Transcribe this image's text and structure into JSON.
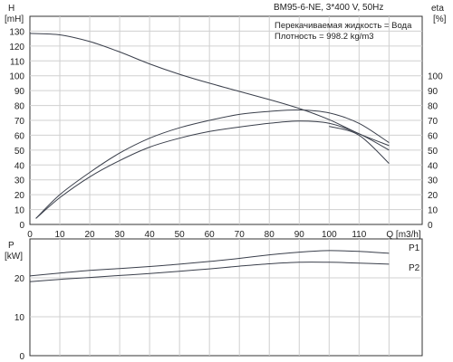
{
  "chart_data": [
    {
      "type": "line",
      "title": "BM95-6-NE, 3*400 V, 50Hz",
      "annotations": [
        "Перекачиваемая жидкость = Вода",
        "Плотность = 998.2 kg/m3"
      ],
      "xlabel": "Q [m3/h]",
      "xlim": [
        0,
        130
      ],
      "x_ticks": [
        "0",
        "10",
        "20",
        "30",
        "40",
        "50",
        "60",
        "70",
        "80",
        "90",
        "100",
        "110",
        "Q [m3/h]"
      ],
      "ylabel_left": [
        "H",
        "[mH]"
      ],
      "ylim_left": [
        0,
        140
      ],
      "y_ticks_left": [
        "0",
        "10",
        "20",
        "30",
        "40",
        "50",
        "60",
        "70",
        "80",
        "90",
        "100",
        "110",
        "120",
        "130"
      ],
      "ylabel_right": [
        "eta",
        "[%]"
      ],
      "ylim_right": [
        0,
        140
      ],
      "y_ticks_right": [
        "0",
        "10",
        "20",
        "30",
        "40",
        "50",
        "60",
        "70",
        "80",
        "90",
        "100"
      ],
      "grid": true,
      "series": [
        {
          "axis": "left",
          "x": [
            0,
            10,
            20,
            30,
            40,
            50,
            60,
            70,
            80,
            90,
            100,
            110,
            120
          ],
          "y": [
            128.5,
            127.5,
            123,
            116,
            108,
            101,
            95,
            89.5,
            84,
            78,
            70.5,
            61,
            53
          ]
        },
        {
          "axis": "right",
          "x": [
            2,
            10,
            20,
            30,
            40,
            50,
            60,
            70,
            80,
            90,
            100,
            110,
            120
          ],
          "y": [
            4,
            20,
            35,
            48,
            58,
            65,
            70,
            74,
            76,
            77,
            75,
            68,
            55
          ]
        },
        {
          "axis": "right",
          "x": [
            2,
            10,
            20,
            30,
            40,
            50,
            60,
            70,
            80,
            90,
            100,
            110,
            120
          ],
          "y": [
            4,
            18,
            32,
            43,
            52,
            58,
            62.5,
            65.5,
            68,
            69.5,
            68,
            61,
            50
          ]
        },
        {
          "axis": "right",
          "x": [
            100,
            110,
            120
          ],
          "y": [
            66,
            60,
            41
          ]
        }
      ]
    },
    {
      "type": "line",
      "ylabel": [
        "P",
        "[kW]"
      ],
      "xlim": [
        0,
        130
      ],
      "ylim": [
        0,
        30
      ],
      "y_ticks": [
        "0",
        "10",
        "20"
      ],
      "grid": true,
      "series": [
        {
          "name": "P1",
          "x": [
            0,
            10,
            20,
            30,
            40,
            50,
            60,
            70,
            80,
            90,
            100,
            110,
            120
          ],
          "y": [
            20.5,
            21.2,
            21.9,
            22.4,
            22.9,
            23.5,
            24.2,
            25.0,
            25.9,
            26.6,
            27.0,
            26.8,
            26.3
          ]
        },
        {
          "name": "P2",
          "x": [
            0,
            10,
            20,
            30,
            40,
            50,
            60,
            70,
            80,
            90,
            100,
            110,
            120
          ],
          "y": [
            19.0,
            19.6,
            20.1,
            20.6,
            21.1,
            21.7,
            22.3,
            23.0,
            23.6,
            24.0,
            24.0,
            23.8,
            23.5
          ]
        }
      ]
    }
  ]
}
